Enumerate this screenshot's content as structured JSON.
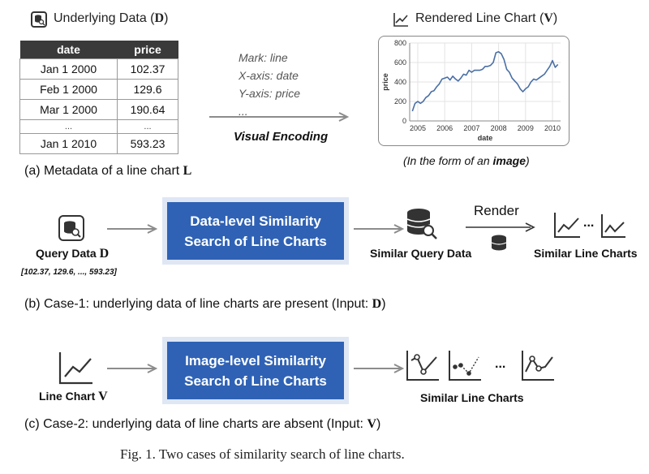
{
  "panel_a": {
    "table_title_prefix": "Underlying Data (",
    "table_title_symbol": "D",
    "table_title_suffix": ")",
    "columns": [
      "date",
      "price"
    ],
    "rows": [
      [
        "Jan 1 2000",
        "102.37"
      ],
      [
        "Feb 1 2000",
        "129.6"
      ],
      [
        "Mar 1 2000",
        "190.64"
      ]
    ],
    "ellipsis": "...",
    "last_row": [
      "Jan 1 2010",
      "593.23"
    ],
    "encoding_lines": [
      "Mark: line",
      "X-axis: date",
      "Y-axis: price",
      "..."
    ],
    "encoding_label": "Visual Encoding",
    "chart_title_prefix": "Rendered Line Chart (",
    "chart_title_symbol": "V",
    "chart_title_suffix": ")",
    "chart_note_prefix": "(",
    "chart_note_italic": "In the form of an ",
    "chart_note_bold": "image",
    "chart_note_suffix": ")",
    "caption_text": "(a) Metadata of a line chart ",
    "caption_symbol": "L"
  },
  "chart_data": {
    "type": "line",
    "xlabel": "date",
    "ylabel": "price",
    "ylim": [
      0,
      800
    ],
    "xlim": [
      2004.7,
      2010.3
    ],
    "y_ticks": [
      "0",
      "200",
      "400",
      "600",
      "800"
    ],
    "x_ticks": [
      "2005",
      "2006",
      "2007",
      "2008",
      "2009",
      "2010"
    ],
    "grid": true,
    "x": [
      2004.8,
      2004.9,
      2005.0,
      2005.1,
      2005.2,
      2005.3,
      2005.4,
      2005.5,
      2005.6,
      2005.7,
      2005.8,
      2005.9,
      2006.0,
      2006.1,
      2006.2,
      2006.3,
      2006.4,
      2006.5,
      2006.6,
      2006.7,
      2006.8,
      2006.9,
      2007.0,
      2007.1,
      2007.2,
      2007.3,
      2007.4,
      2007.5,
      2007.6,
      2007.7,
      2007.8,
      2007.9,
      2008.0,
      2008.1,
      2008.2,
      2008.3,
      2008.4,
      2008.5,
      2008.6,
      2008.7,
      2008.8,
      2008.9,
      2009.0,
      2009.1,
      2009.2,
      2009.3,
      2009.4,
      2009.5,
      2009.6,
      2009.7,
      2009.8,
      2009.9,
      2010.0,
      2010.1,
      2010.2
    ],
    "y": [
      100,
      180,
      200,
      180,
      200,
      240,
      260,
      300,
      310,
      350,
      380,
      430,
      440,
      450,
      420,
      460,
      430,
      410,
      440,
      480,
      470,
      520,
      500,
      520,
      520,
      520,
      530,
      560,
      560,
      570,
      600,
      700,
      710,
      690,
      630,
      530,
      500,
      440,
      410,
      380,
      330,
      300,
      330,
      350,
      400,
      430,
      420,
      440,
      460,
      480,
      520,
      560,
      620,
      550,
      580
    ],
    "series": [
      {
        "color": "#4a6fa5"
      }
    ]
  },
  "panel_b": {
    "query_label_text": "Query Data ",
    "query_label_symbol": "D",
    "query_values": "[102.37, 129.6, ..., 593.23]",
    "box_line1": "Data-level Similarity",
    "box_line2": "Search of Line Charts",
    "similar_data_label": "Similar Query Data",
    "render_label": "Render",
    "similar_charts_label": "Similar Line Charts",
    "dots": "...",
    "caption_text": "(b) Case-1: underlying data of line charts are present (Input: ",
    "caption_symbol": "D",
    "caption_suffix": ")"
  },
  "panel_c": {
    "input_label_text": "Line Chart ",
    "input_label_symbol": "V",
    "box_line1": "Image-level Similarity",
    "box_line2": "Search of Line Charts",
    "dots": "...",
    "similar_charts_label": "Similar Line Charts",
    "caption_text": "(c) Case-2: underlying data of line charts are absent (Input: ",
    "caption_symbol": "V",
    "caption_suffix": ")"
  },
  "figure_caption": "Fig. 1.  Two cases of similarity search of line charts.",
  "colors": {
    "accent_blue": "#2f62b5",
    "line_blue": "#4a6fa5",
    "arrow_gray": "#8c8c8c"
  }
}
